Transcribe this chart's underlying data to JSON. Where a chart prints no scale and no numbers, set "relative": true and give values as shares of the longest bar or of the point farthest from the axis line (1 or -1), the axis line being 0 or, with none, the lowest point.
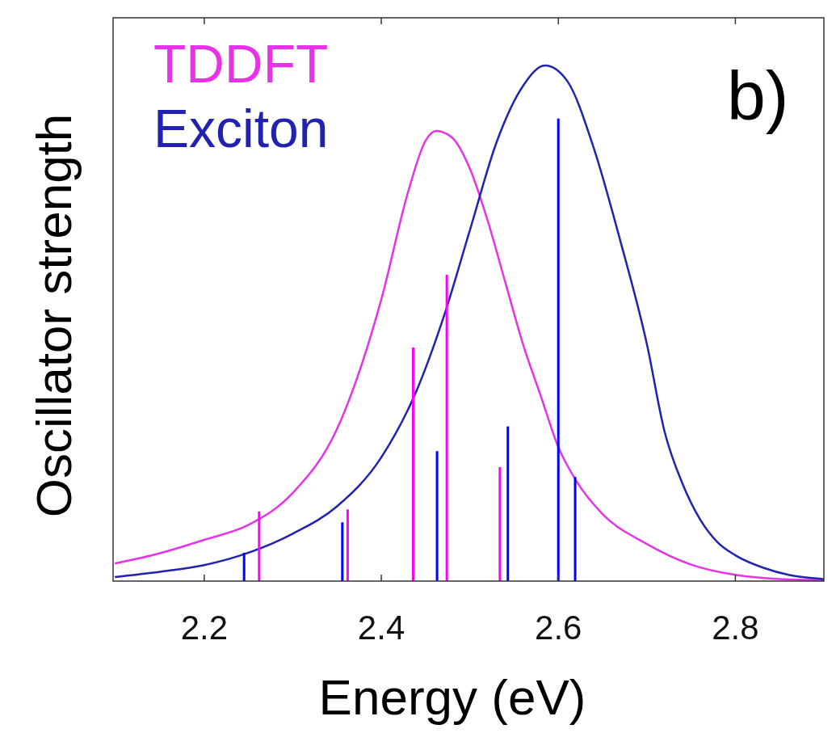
{
  "chart_data": {
    "type": "line",
    "relative": true,
    "xlabel": "Energy (eV)",
    "ylabel": "Oscillator strength",
    "annotations": [
      "b)"
    ],
    "xlim": [
      2.097,
      2.9
    ],
    "xticks": [
      2.2,
      2.4,
      2.6,
      2.8
    ],
    "grid": false,
    "legend": "top left",
    "marker": "none",
    "line_style": "solid",
    "series": [
      {
        "name": "TDDFT",
        "color": "#e633e6",
        "x": [
          2.099,
          2.15,
          2.2,
          2.25,
          2.3,
          2.35,
          2.4,
          2.43,
          2.45,
          2.462,
          2.48,
          2.5,
          2.52,
          2.54,
          2.56,
          2.58,
          2.6,
          2.62,
          2.65,
          2.7,
          2.75,
          2.8,
          2.85,
          2.9
        ],
        "values": [
          0.034,
          0.054,
          0.08,
          0.109,
          0.171,
          0.295,
          0.546,
          0.753,
          0.854,
          0.873,
          0.86,
          0.8,
          0.7,
          0.58,
          0.46,
          0.36,
          0.26,
          0.195,
          0.13,
          0.072,
          0.032,
          0.012,
          0.004,
          0.002
        ]
      },
      {
        "name": "Exciton",
        "color": "#2222b0",
        "x": [
          2.099,
          2.15,
          2.2,
          2.25,
          2.3,
          2.35,
          2.4,
          2.44,
          2.47,
          2.5,
          2.53,
          2.56,
          2.585,
          2.61,
          2.64,
          2.67,
          2.7,
          2.72,
          2.74,
          2.76,
          2.78,
          2.8,
          2.833,
          2.86,
          2.9
        ],
        "values": [
          0.008,
          0.018,
          0.031,
          0.055,
          0.092,
          0.145,
          0.24,
          0.37,
          0.51,
          0.68,
          0.85,
          0.96,
          1,
          0.97,
          0.84,
          0.66,
          0.46,
          0.29,
          0.19,
          0.12,
          0.075,
          0.05,
          0.025,
          0.012,
          0.004
        ]
      },
      {
        "type": "bar",
        "color": "#ff00ff",
        "x": [
          2.262,
          2.362,
          2.436,
          2.474,
          2.534
        ],
        "values": [
          0.135,
          0.139,
          0.453,
          0.594,
          0.221
        ]
      },
      {
        "type": "bar",
        "color": "#0000ff",
        "x": [
          2.245,
          2.356,
          2.463,
          2.543,
          2.6,
          2.619
        ],
        "values": [
          0.055,
          0.114,
          0.252,
          0.3,
          0.897,
          0.202
        ]
      }
    ]
  }
}
